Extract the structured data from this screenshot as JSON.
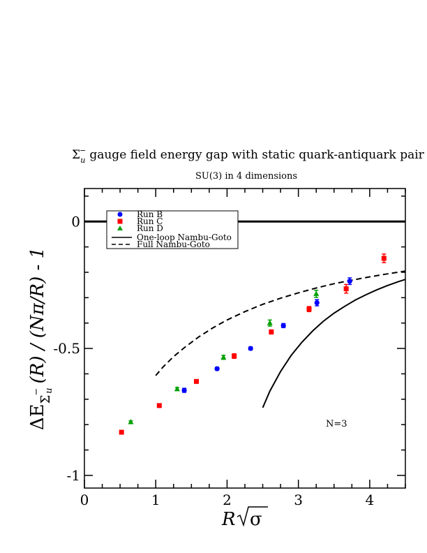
{
  "chart_data": {
    "type": "scatter",
    "title": "gauge field energy gap with static quark-antiquark pair",
    "title_symbol": "Σ",
    "title_symbol_sub": "u",
    "title_symbol_sup": "−",
    "subtitle": "SU(3) in 4 dimensions",
    "xlabel_main": "R",
    "xlabel_root": "σ",
    "ylabel_a": "ΔE",
    "ylabel_sub1": "Σ",
    "ylabel_sub2": "u",
    "ylabel_sup": "−",
    "ylabel_b": "(R) / (Nπ/R) - 1",
    "xlim": [
      0,
      4.5
    ],
    "ylim": [
      -1.05,
      0.13
    ],
    "x_ticks": [
      0,
      1,
      2,
      3,
      4
    ],
    "x_tick_labels": [
      "0",
      "1",
      "2",
      "3",
      "4"
    ],
    "y_ticks": [
      0,
      -0.5,
      -1
    ],
    "y_tick_labels": [
      "0",
      "-0.5",
      "-1"
    ],
    "annotation": "N=3",
    "legend_placement": "top-left",
    "series": [
      {
        "name": "Run B",
        "marker": "circle",
        "color": "#0000ff",
        "x": [
          1.4,
          1.86,
          2.33,
          2.79,
          3.26,
          3.72
        ],
        "y": [
          -0.665,
          -0.58,
          -0.5,
          -0.41,
          -0.32,
          -0.235
        ],
        "err": [
          0.008,
          0.006,
          0.006,
          0.008,
          0.012,
          0.013
        ]
      },
      {
        "name": "Run C",
        "marker": "square",
        "color": "#ff0000",
        "x": [
          0.52,
          1.05,
          1.57,
          2.1,
          2.62,
          3.15,
          3.67,
          4.2
        ],
        "y": [
          -0.83,
          -0.725,
          -0.63,
          -0.53,
          -0.435,
          -0.345,
          -0.265,
          -0.145
        ],
        "err": [
          0.005,
          0.005,
          0.006,
          0.009,
          0.008,
          0.01,
          0.017,
          0.017
        ]
      },
      {
        "name": "Run D",
        "marker": "triangle",
        "color": "#00a000",
        "x": [
          0.65,
          1.3,
          1.95,
          2.6,
          3.25
        ],
        "y": [
          -0.79,
          -0.66,
          -0.535,
          -0.4,
          -0.285
        ],
        "err": [
          0.005,
          0.006,
          0.008,
          0.012,
          0.014
        ]
      }
    ],
    "curves": [
      {
        "name": "One-loop Nambu-Goto",
        "style": "solid",
        "x": [
          2.5,
          2.6,
          2.75,
          2.9,
          3.05,
          3.2,
          3.35,
          3.5,
          3.65,
          3.8,
          3.95,
          4.1,
          4.25,
          4.4,
          4.5
        ],
        "y": [
          -0.733,
          -0.668,
          -0.591,
          -0.527,
          -0.475,
          -0.431,
          -0.393,
          -0.361,
          -0.334,
          -0.309,
          -0.288,
          -0.269,
          -0.252,
          -0.237,
          -0.228
        ]
      },
      {
        "name": "Full Nambu-Goto",
        "style": "dashed",
        "x": [
          1.0,
          1.1,
          1.25,
          1.4,
          1.6,
          1.8,
          2.0,
          2.25,
          2.5,
          2.75,
          3.0,
          3.25,
          3.5,
          3.75,
          4.0,
          4.25,
          4.5
        ],
        "y": [
          -0.607,
          -0.574,
          -0.532,
          -0.497,
          -0.455,
          -0.419,
          -0.388,
          -0.355,
          -0.326,
          -0.302,
          -0.281,
          -0.262,
          -0.245,
          -0.231,
          -0.218,
          -0.206,
          -0.195
        ]
      }
    ],
    "reference_line": {
      "y": 0
    }
  }
}
